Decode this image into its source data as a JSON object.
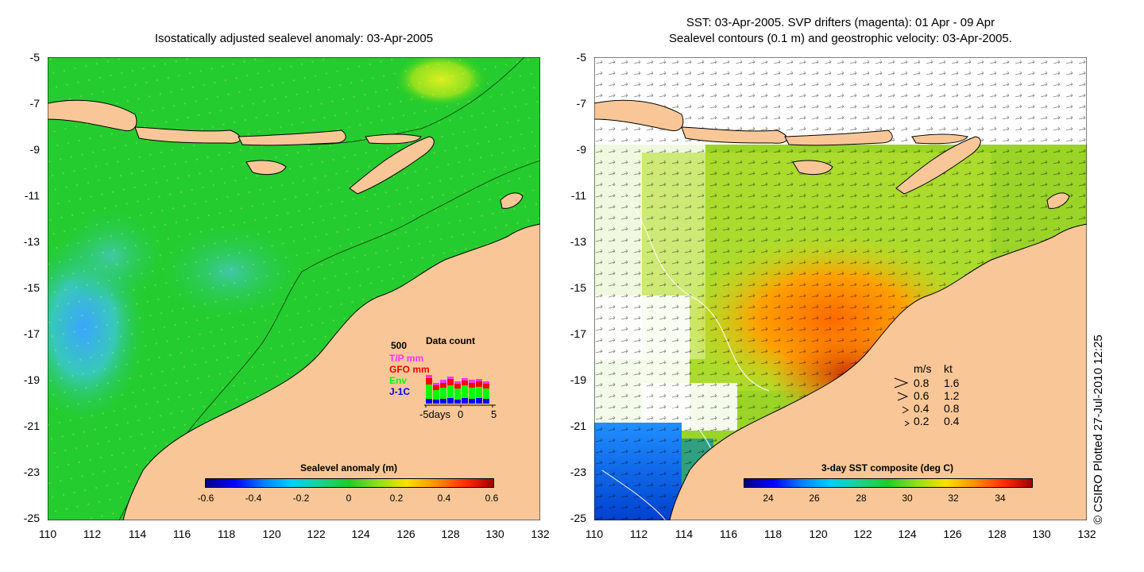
{
  "left_panel": {
    "title": "Isostatically adjusted sealevel anomaly: 03-Apr-2005",
    "y_ticks": [
      "-5",
      "-7",
      "-9",
      "-11",
      "-13",
      "-15",
      "-17",
      "-19",
      "-21",
      "-23",
      "-25"
    ],
    "x_ticks": [
      "110",
      "112",
      "114",
      "116",
      "118",
      "120",
      "122",
      "124",
      "126",
      "128",
      "130",
      "132"
    ],
    "colorbar": {
      "title": "Sealevel anomaly (m)",
      "labels": [
        "-0.6",
        "-0.4",
        "-0.2",
        "0",
        "0.2",
        "0.4",
        "0.6"
      ]
    },
    "data_count": {
      "title": "Data count",
      "max_label": "500",
      "series": [
        {
          "label": "T/P mm",
          "color": "#ff33ff"
        },
        {
          "label": "GFO mm",
          "color": "#ff0000"
        },
        {
          "label": "Env",
          "color": "#00ff00"
        },
        {
          "label": "J-1C",
          "color": "#0000ff"
        }
      ],
      "x_labels": [
        "-5days",
        "0",
        "5"
      ]
    }
  },
  "right_panel": {
    "title_line1": "SST: 03-Apr-2005. SVP drifters (magenta): 01 Apr - 09 Apr",
    "title_line2": "Sealevel contours (0.1 m) and geostrophic velocity: 03-Apr-2005.",
    "y_ticks": [
      "-5",
      "-7",
      "-9",
      "-11",
      "-13",
      "-15",
      "-17",
      "-19",
      "-21",
      "-23",
      "-25"
    ],
    "x_ticks": [
      "110",
      "112",
      "114",
      "116",
      "118",
      "120",
      "122",
      "124",
      "126",
      "128",
      "130",
      "132"
    ],
    "colorbar": {
      "title": "3-day SST composite (deg C)",
      "labels": [
        "24",
        "26",
        "28",
        "30",
        "32",
        "34"
      ]
    },
    "velocity_legend": {
      "header_ms": "m/s",
      "header_kt": "kt",
      "rows": [
        {
          "ms": "0.8",
          "kt": "1.6"
        },
        {
          "ms": "0.6",
          "kt": "1.2"
        },
        {
          "ms": "0.4",
          "kt": "0.8"
        },
        {
          "ms": "0.2",
          "kt": "0.4"
        }
      ]
    }
  },
  "credit": "© CSIRO Plotted 27-Jul-2010 12:25",
  "colors": {
    "land": "#f9c797",
    "ocean_sla": "#22cc22",
    "cloud": "#ffffff"
  }
}
